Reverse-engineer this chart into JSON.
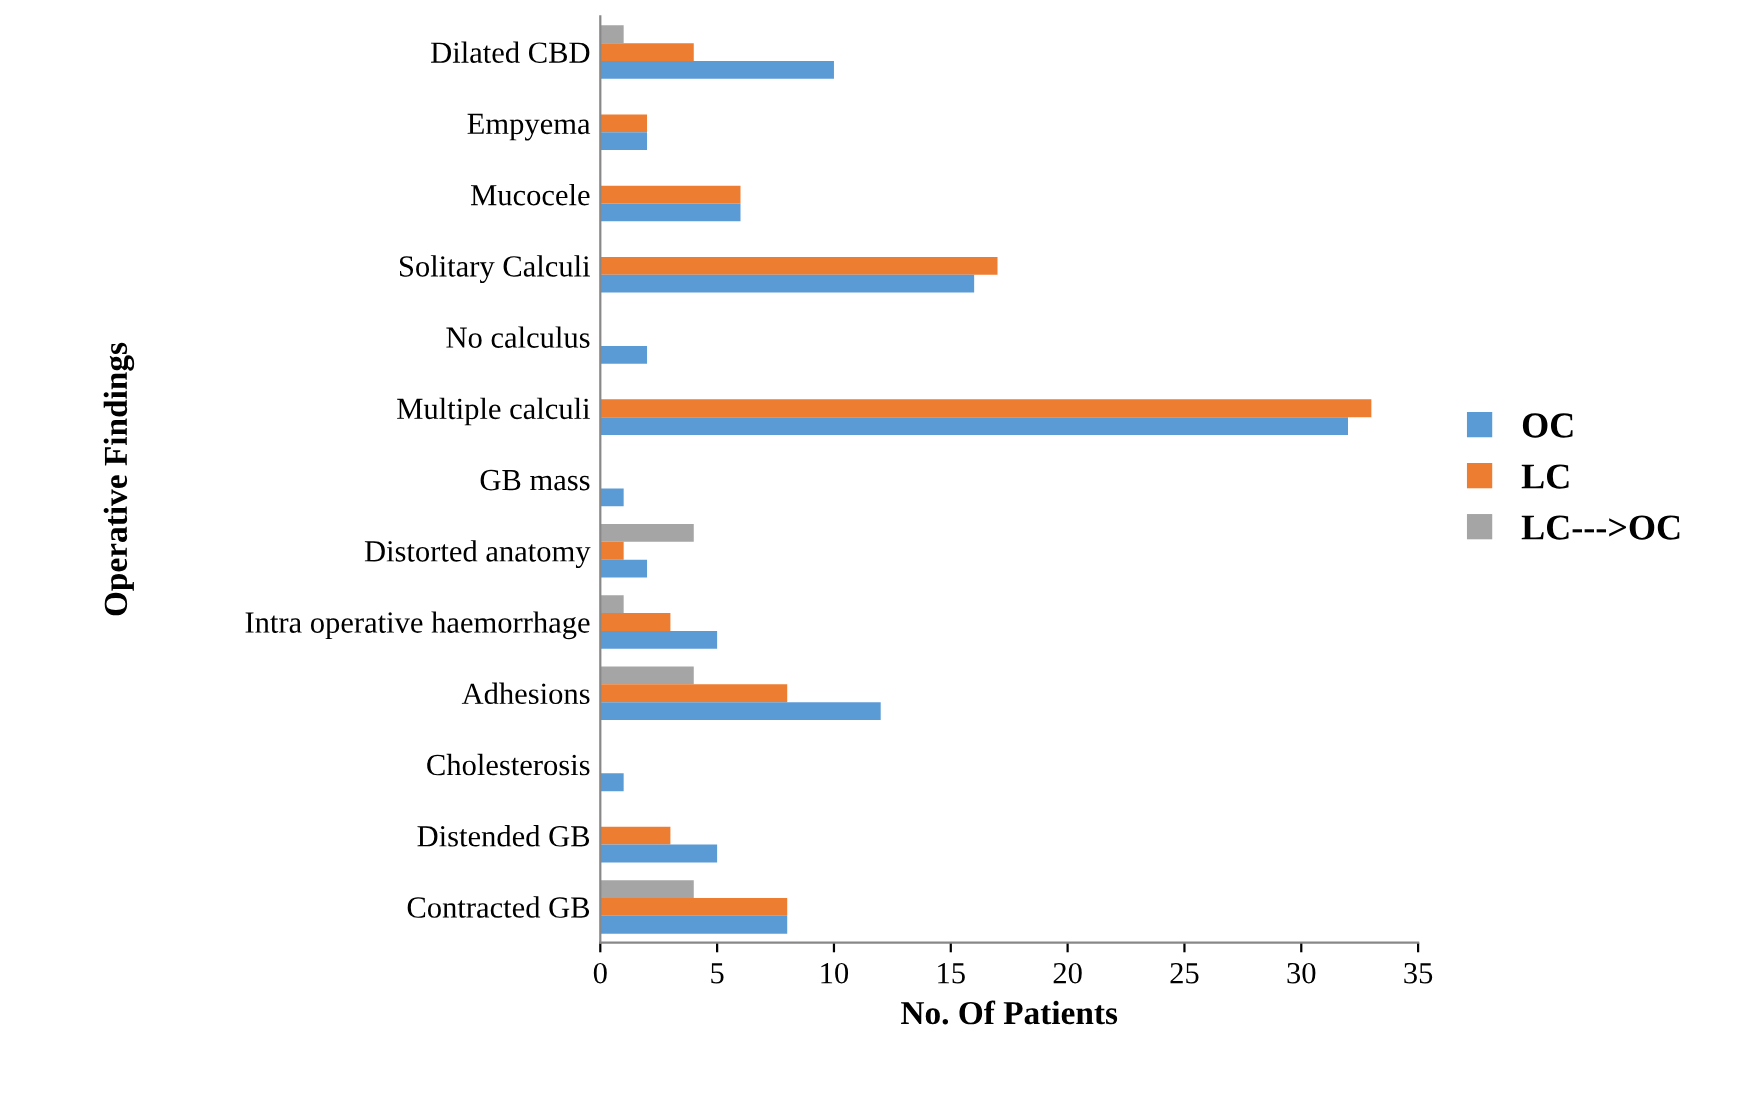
{
  "chart_data": {
    "type": "bar",
    "orientation": "horizontal",
    "xlabel": "No. Of Patients",
    "ylabel": "Operative Findings",
    "categories": [
      "Dilated CBD",
      "Empyema",
      "Mucocele",
      "Solitary Calculi",
      "No calculus",
      "Multiple calculi",
      "GB mass",
      "Distorted anatomy",
      "Intra operative haemorrhage",
      "Adhesions",
      "Cholesterosis",
      "Distended GB",
      "Contracted GB"
    ],
    "series": [
      {
        "name": "LC--->OC",
        "color": "#a5a5a5",
        "values": [
          1,
          0,
          0,
          0,
          0,
          0,
          0,
          4,
          1,
          4,
          0,
          0,
          4
        ]
      },
      {
        "name": "LC",
        "color": "#ed7d31",
        "values": [
          4,
          2,
          6,
          17,
          0,
          33,
          0,
          1,
          3,
          8,
          0,
          3,
          8
        ]
      },
      {
        "name": "OC",
        "color": "#5b9bd5",
        "values": [
          10,
          2,
          6,
          16,
          2,
          32,
          1,
          2,
          5,
          12,
          1,
          5,
          8
        ]
      }
    ],
    "xlim": [
      0,
      35
    ],
    "xticks": [
      0,
      5,
      10,
      15,
      20,
      25,
      30,
      35
    ],
    "grid": false,
    "legend": "right"
  }
}
